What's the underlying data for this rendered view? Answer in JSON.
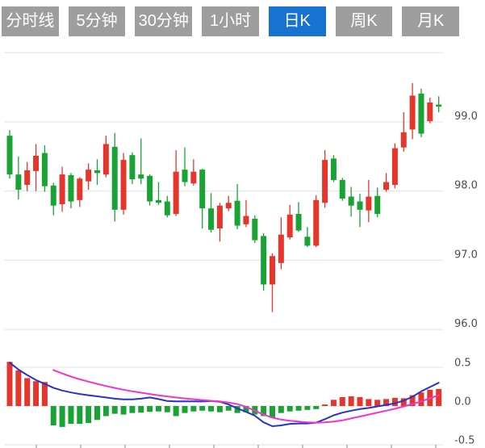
{
  "tabs": {
    "items": [
      {
        "id": "timeline",
        "label": "分时线",
        "active": false
      },
      {
        "id": "5min",
        "label": "5分钟",
        "active": false
      },
      {
        "id": "30min",
        "label": "30分钟",
        "active": false
      },
      {
        "id": "1hour",
        "label": "1小时",
        "active": false
      },
      {
        "id": "daily",
        "label": "日K",
        "active": true
      },
      {
        "id": "weekly",
        "label": "周K",
        "active": false
      },
      {
        "id": "monthly",
        "label": "月K",
        "active": false
      }
    ]
  },
  "colors": {
    "tab_bg": "#9e9e9e",
    "tab_active_bg": "#1673d2",
    "tab_text": "#ffffff",
    "up": "#e6352a",
    "down": "#1aa335",
    "dif_line": "#2633cc",
    "dea_line": "#f334c9",
    "grid": "#e0e0e0",
    "axis_label": "#4d4d4d",
    "tick": "#888888"
  },
  "chart_data": {
    "type": "candlestick+macd-histogram",
    "price_axis": {
      "ticks": [
        {
          "value": 100,
          "label": ""
        },
        {
          "value": 99,
          "label": "99.0"
        },
        {
          "value": 98,
          "label": "98.0"
        },
        {
          "value": 97,
          "label": "97.0"
        },
        {
          "value": 96,
          "label": "96.0"
        }
      ]
    },
    "macd_axis": {
      "ticks": [
        {
          "value": 0.5,
          "label": "0.5"
        },
        {
          "value": 0,
          "label": "0.0"
        },
        {
          "value": -0.5,
          "label": "-0.5"
        }
      ]
    },
    "candles": [
      [
        98.8,
        98.88,
        98.18,
        98.24
      ],
      [
        98.24,
        98.5,
        97.88,
        98.02
      ],
      [
        98.09,
        98.42,
        98.0,
        98.3
      ],
      [
        98.29,
        98.68,
        98.0,
        98.51
      ],
      [
        98.55,
        98.66,
        97.99,
        98.07
      ],
      [
        98.08,
        98.12,
        97.65,
        97.79
      ],
      [
        97.81,
        98.35,
        97.7,
        98.24
      ],
      [
        98.23,
        98.26,
        97.75,
        97.85
      ],
      [
        97.87,
        98.2,
        97.77,
        98.18
      ],
      [
        98.14,
        98.4,
        98.02,
        98.31
      ],
      [
        98.3,
        98.46,
        98.09,
        98.26
      ],
      [
        98.24,
        98.8,
        98.2,
        98.68
      ],
      [
        98.64,
        98.84,
        97.56,
        97.73
      ],
      [
        97.73,
        98.55,
        97.66,
        98.45
      ],
      [
        98.52,
        98.56,
        98.1,
        98.17
      ],
      [
        98.24,
        98.76,
        98.1,
        98.18
      ],
      [
        98.22,
        98.24,
        97.79,
        97.85
      ],
      [
        97.87,
        98.13,
        97.8,
        97.83
      ],
      [
        97.85,
        97.93,
        97.62,
        97.65
      ],
      [
        97.67,
        98.59,
        97.64,
        98.28
      ],
      [
        98.31,
        98.63,
        98.07,
        98.13
      ],
      [
        98.11,
        98.46,
        98.08,
        98.28
      ],
      [
        98.31,
        98.32,
        97.46,
        97.75
      ],
      [
        97.75,
        97.97,
        97.4,
        97.44
      ],
      [
        97.46,
        97.83,
        97.27,
        97.79
      ],
      [
        97.75,
        97.93,
        97.71,
        97.83
      ],
      [
        97.86,
        98.1,
        97.45,
        97.5
      ],
      [
        97.52,
        97.87,
        97.48,
        97.64
      ],
      [
        97.6,
        97.65,
        97.25,
        97.29
      ],
      [
        97.35,
        97.39,
        96.56,
        96.65
      ],
      [
        96.65,
        97.1,
        96.25,
        97.06
      ],
      [
        96.96,
        97.62,
        96.87,
        97.37
      ],
      [
        97.33,
        97.8,
        97.3,
        97.66
      ],
      [
        97.67,
        97.84,
        97.41,
        97.43
      ],
      [
        97.34,
        97.48,
        97.19,
        97.21
      ],
      [
        97.21,
        97.94,
        97.19,
        97.87
      ],
      [
        97.83,
        98.59,
        97.76,
        98.45
      ],
      [
        98.47,
        98.52,
        98.13,
        98.16
      ],
      [
        98.16,
        98.19,
        97.86,
        97.89
      ],
      [
        97.92,
        98.06,
        97.63,
        97.79
      ],
      [
        97.85,
        97.96,
        97.48,
        97.73
      ],
      [
        97.72,
        98.16,
        97.55,
        97.92
      ],
      [
        97.93,
        98.05,
        97.62,
        97.67
      ],
      [
        98.02,
        98.26,
        97.99,
        98.13
      ],
      [
        98.09,
        98.69,
        98.04,
        98.62
      ],
      [
        98.63,
        99.14,
        98.57,
        98.85
      ],
      [
        98.89,
        99.56,
        98.75,
        99.38
      ],
      [
        99.41,
        99.48,
        98.78,
        98.83
      ],
      [
        99.01,
        99.35,
        98.98,
        99.28
      ],
      [
        99.25,
        99.37,
        99.14,
        99.22
      ]
    ],
    "macd_bars": [
      0.57,
      0.46,
      0.36,
      0.32,
      0.31,
      -0.25,
      -0.27,
      -0.23,
      -0.23,
      -0.22,
      -0.18,
      -0.13,
      -0.1,
      -0.11,
      -0.09,
      -0.085,
      -0.075,
      -0.07,
      -0.08,
      -0.13,
      -0.09,
      -0.07,
      -0.06,
      -0.07,
      -0.08,
      -0.06,
      -0.09,
      -0.08,
      -0.11,
      -0.13,
      -0.15,
      -0.09,
      -0.07,
      -0.06,
      -0.05,
      -0.04,
      0.02,
      0.08,
      0.115,
      0.126,
      0.115,
      0.09,
      0.08,
      0.09,
      0.105,
      0.1,
      0.14,
      0.175,
      0.21,
      0.22
    ],
    "dif": [
      0.56,
      0.47,
      0.4,
      0.335,
      0.285,
      0.235,
      0.2,
      0.175,
      0.155,
      0.14,
      0.125,
      0.11,
      0.095,
      0.085,
      0.085,
      0.095,
      0.11,
      0.09,
      0.065,
      0.06,
      0.06,
      0.06,
      0.058,
      0.065,
      0.055,
      0.02,
      -0.03,
      -0.075,
      -0.125,
      -0.21,
      -0.26,
      -0.25,
      -0.23,
      -0.225,
      -0.225,
      -0.215,
      -0.17,
      -0.12,
      -0.085,
      -0.06,
      -0.04,
      -0.025,
      -0.005,
      0.015,
      0.035,
      0.07,
      0.12,
      0.19,
      0.245,
      0.3
    ],
    "dea": [
      null,
      null,
      null,
      null,
      null,
      0.465,
      0.42,
      0.38,
      0.345,
      0.315,
      0.285,
      0.258,
      0.233,
      0.21,
      0.19,
      0.172,
      0.155,
      0.139,
      0.124,
      0.11,
      0.098,
      0.087,
      0.077,
      0.068,
      0.059,
      0.045,
      0.025,
      -0.01,
      -0.06,
      -0.11,
      -0.15,
      -0.175,
      -0.19,
      -0.2,
      -0.21,
      -0.215,
      -0.21,
      -0.2,
      -0.185,
      -0.16,
      -0.135,
      -0.11,
      -0.085,
      -0.06,
      -0.035,
      -0.005,
      0.025,
      0.06,
      0.1,
      0.14
    ]
  }
}
